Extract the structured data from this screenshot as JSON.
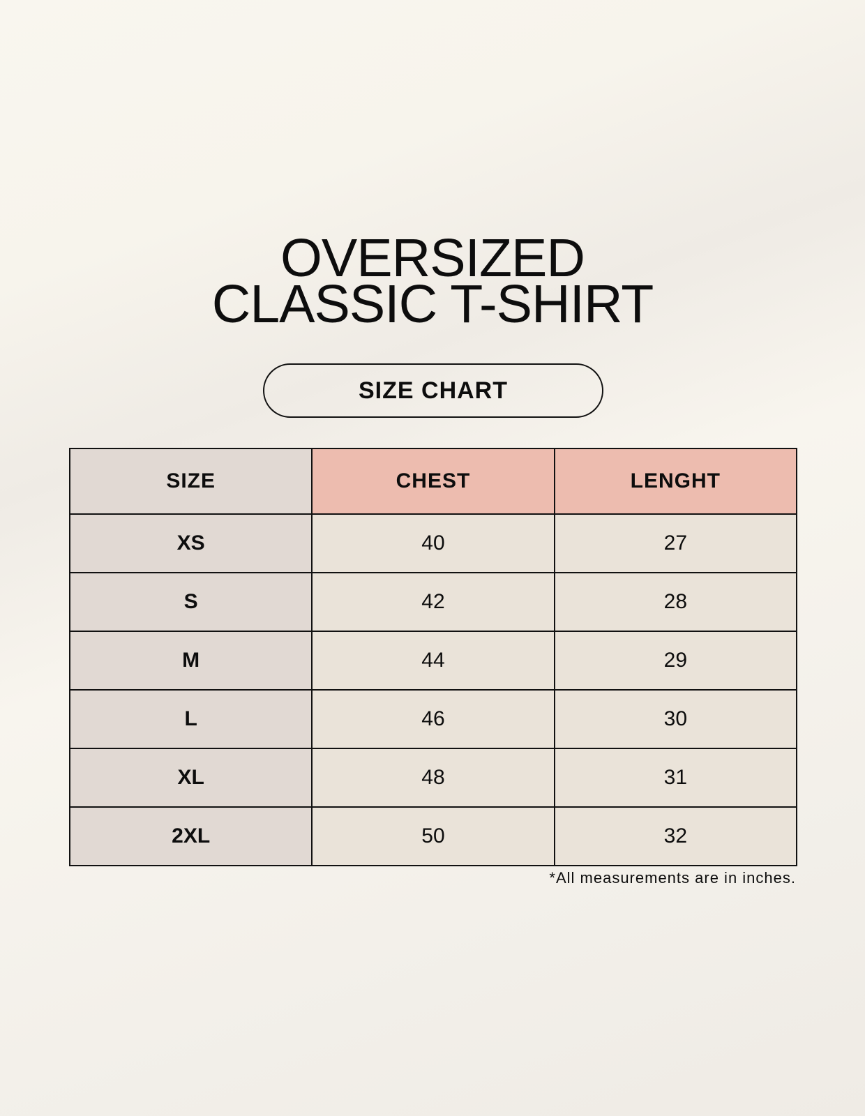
{
  "title": {
    "line1": "OVERSIZED",
    "line2": "CLASSIC T-SHIRT"
  },
  "subtitle": "SIZE CHART",
  "colors": {
    "size_column": "#e1d9d3",
    "header_accent": "#edbcaf",
    "cell": "#eae3d9",
    "border": "#111111"
  },
  "table": {
    "headers": [
      "SIZE",
      "CHEST",
      "LENGHT"
    ],
    "rows": [
      [
        "XS",
        "40",
        "27"
      ],
      [
        "S",
        "42",
        "28"
      ],
      [
        "M",
        "44",
        "29"
      ],
      [
        "L",
        "46",
        "30"
      ],
      [
        "XL",
        "48",
        "31"
      ],
      [
        "2XL",
        "50",
        "32"
      ]
    ]
  },
  "footnote": "*All measurements are in inches."
}
